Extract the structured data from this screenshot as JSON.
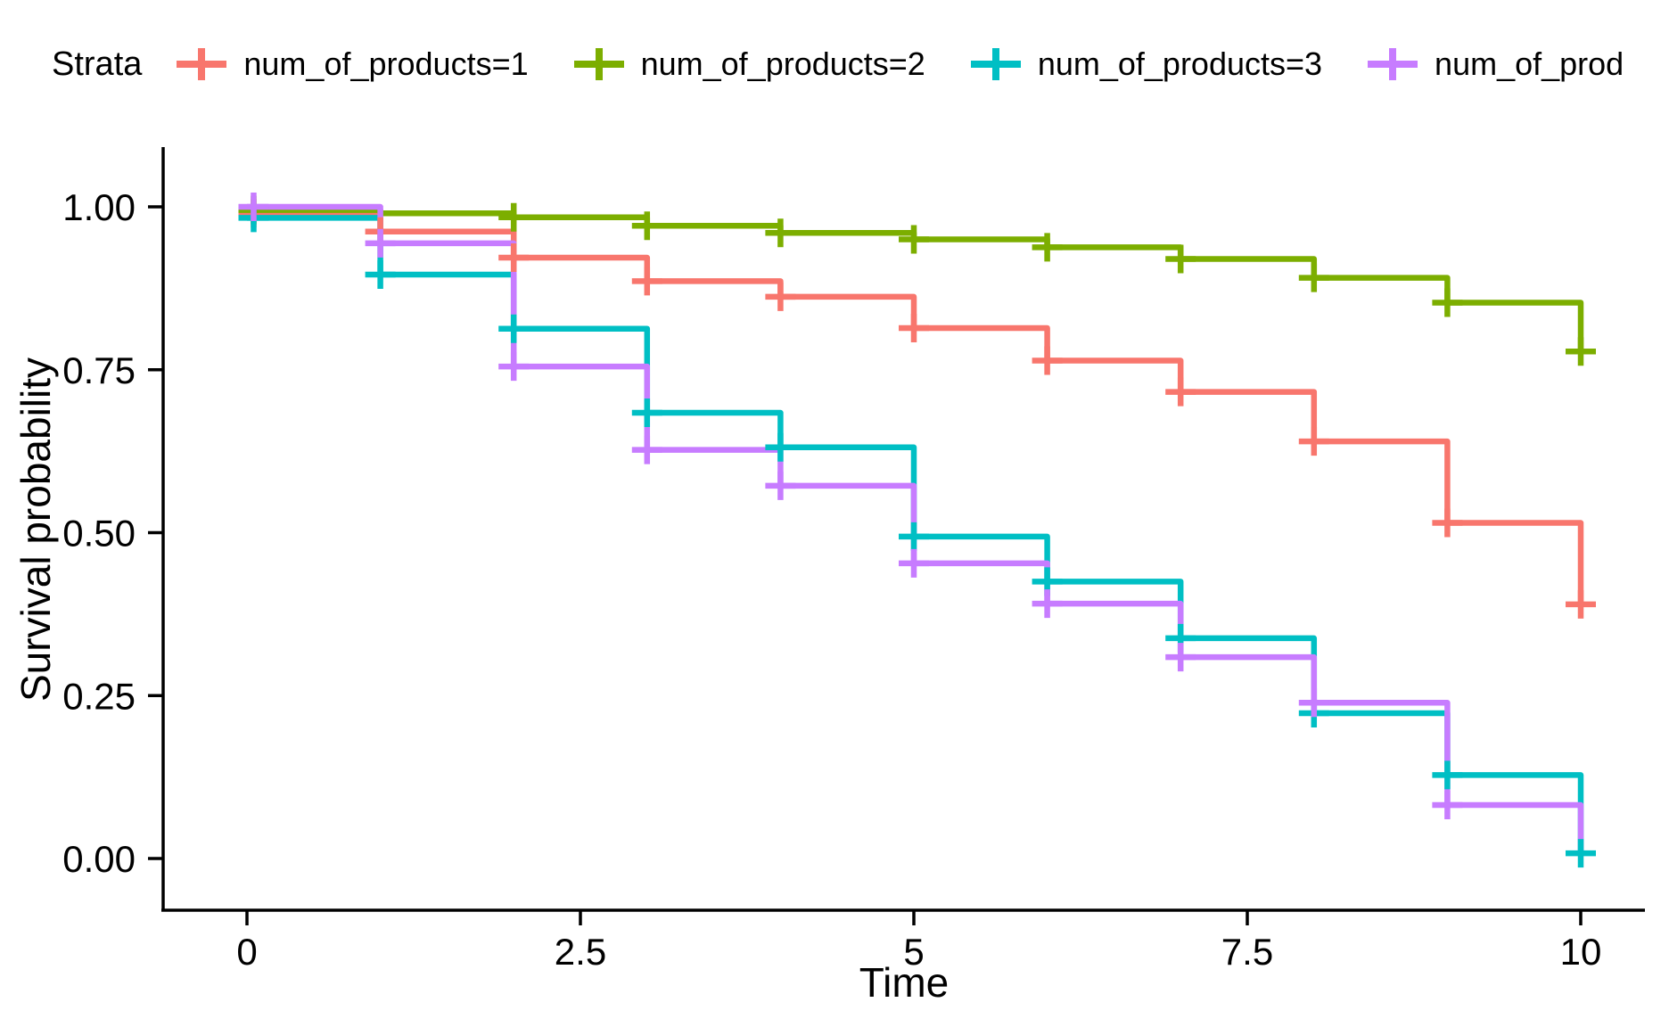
{
  "legend": {
    "title": "Strata",
    "entries": [
      {
        "label": "num_of_products=1",
        "color": "#F8766D"
      },
      {
        "label": "num_of_products=2",
        "color": "#7CAE00"
      },
      {
        "label": "num_of_products=3",
        "color": "#00BFC4"
      },
      {
        "label": "num_of_prod",
        "color": "#C77CFF"
      }
    ]
  },
  "axes": {
    "x": {
      "title": "Time",
      "range": [
        0,
        10
      ],
      "ticks": [
        {
          "value": 0,
          "label": "0"
        },
        {
          "value": 2.5,
          "label": "2.5"
        },
        {
          "value": 5,
          "label": "5"
        },
        {
          "value": 7.5,
          "label": "7.5"
        },
        {
          "value": 10,
          "label": "10"
        }
      ]
    },
    "y": {
      "title": "Survival probability",
      "range": [
        0,
        1
      ],
      "ticks": [
        {
          "value": 1.0,
          "label": "1.00"
        },
        {
          "value": 0.75,
          "label": "0.75"
        },
        {
          "value": 0.5,
          "label": "0.50"
        },
        {
          "value": 0.25,
          "label": "0.25"
        },
        {
          "value": 0.0,
          "label": "0.00"
        }
      ]
    }
  },
  "chart_data": {
    "type": "line",
    "subtype": "kaplan-meier-step",
    "title": "",
    "xlabel": "Time",
    "ylabel": "Survival probability",
    "xlim": [
      0,
      10
    ],
    "ylim": [
      0,
      1
    ],
    "x_ticks": [
      0,
      2.5,
      5,
      7.5,
      10
    ],
    "y_ticks": [
      0.0,
      0.25,
      0.5,
      0.75,
      1.0
    ],
    "grid": false,
    "legend_position": "top",
    "legend_title": "Strata",
    "times": [
      0,
      1,
      2,
      3,
      4,
      5,
      6,
      7,
      8,
      9,
      10
    ],
    "series": [
      {
        "name": "num_of_products=1",
        "color": "#F8766D",
        "survival": [
          0.99,
          0.962,
          0.922,
          0.886,
          0.862,
          0.814,
          0.764,
          0.716,
          0.64,
          0.515,
          0.39
        ],
        "censor_times": [
          0.05,
          1,
          2,
          3,
          4,
          5,
          6,
          7,
          8,
          9,
          10
        ]
      },
      {
        "name": "num_of_products=2",
        "color": "#7CAE00",
        "survival": [
          0.995,
          0.99,
          0.984,
          0.971,
          0.96,
          0.95,
          0.938,
          0.92,
          0.891,
          0.853,
          0.778
        ],
        "censor_times": [
          0.05,
          2,
          3,
          4,
          5,
          6,
          7,
          8,
          9,
          10
        ]
      },
      {
        "name": "num_of_products=3",
        "color": "#00BFC4",
        "survival": [
          0.983,
          0.896,
          0.813,
          0.684,
          0.631,
          0.494,
          0.425,
          0.338,
          0.223,
          0.128,
          0.008
        ],
        "censor_times": [
          0.05,
          1,
          2,
          3,
          4,
          5,
          6,
          7,
          8,
          9,
          10
        ]
      },
      {
        "name": "num_of_prod",
        "color": "#C77CFF",
        "survival": [
          1.0,
          0.944,
          0.755,
          0.627,
          0.572,
          0.453,
          0.391,
          0.309,
          0.239,
          0.082,
          0.008
        ],
        "censor_times": [
          0.05,
          1,
          2,
          3,
          4,
          5,
          6,
          7,
          8,
          9
        ]
      }
    ]
  }
}
